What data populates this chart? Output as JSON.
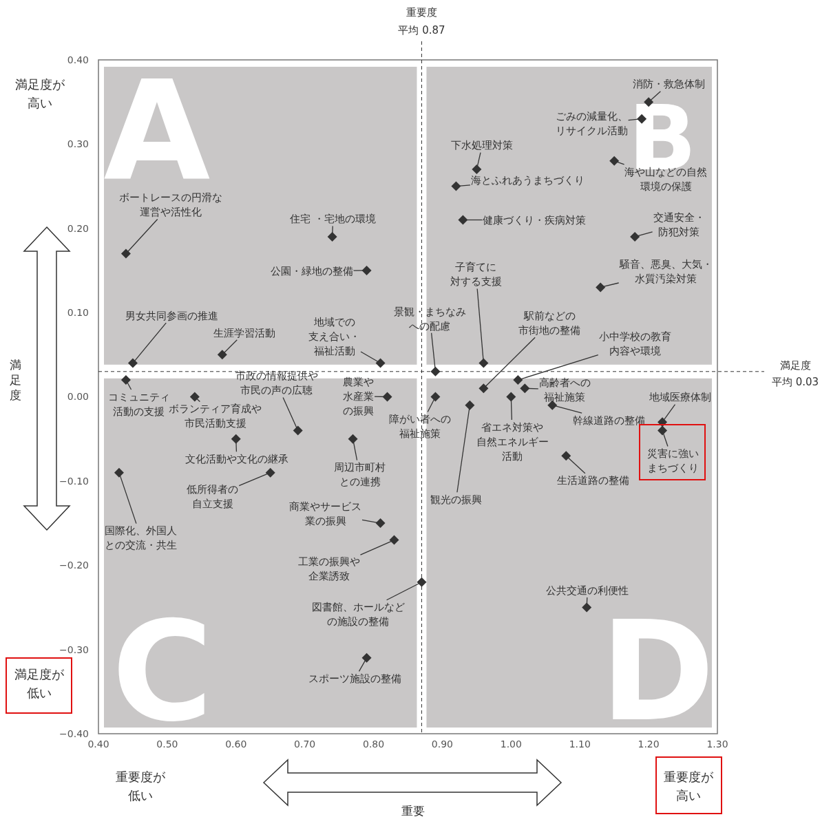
{
  "chart_data": {
    "type": "scatter",
    "xlabel": "重要",
    "ylabel": "満足度",
    "xlim": [
      0.4,
      1.3
    ],
    "ylim": [
      -0.4,
      0.4
    ],
    "xticks": [
      {
        "value": 0.4,
        "label": "0.40"
      },
      {
        "value": 0.5,
        "label": "0.50"
      },
      {
        "value": 0.6,
        "label": "0.60"
      },
      {
        "value": 0.7,
        "label": "0.70"
      },
      {
        "value": 0.8,
        "label": "0.80"
      },
      {
        "value": 0.9,
        "label": "0.90"
      },
      {
        "value": 1.0,
        "label": "1.00"
      },
      {
        "value": 1.1,
        "label": "1.10"
      },
      {
        "value": 1.2,
        "label": "1.20"
      },
      {
        "value": 1.3,
        "label": "1.30"
      }
    ],
    "yticks": [
      {
        "value": 0.4,
        "label": "0.40"
      },
      {
        "value": 0.3,
        "label": "0.30"
      },
      {
        "value": 0.2,
        "label": "0.20"
      },
      {
        "value": 0.1,
        "label": "0.10"
      },
      {
        "value": 0,
        "label": "0.00"
      },
      {
        "value": -0.1,
        "label": "−0.10"
      },
      {
        "value": -0.2,
        "label": "−0.20"
      },
      {
        "value": -0.3,
        "label": "−0.30"
      },
      {
        "value": -0.4,
        "label": "−0.40"
      }
    ],
    "marker": "diamond",
    "series": [
      {
        "color": "#333333",
        "x": [
          1.2,
          1.19,
          1.15,
          0.95,
          0.92,
          0.93,
          1.18,
          1.13,
          0.74,
          0.79,
          0.44,
          0.45,
          0.58,
          0.81,
          0.89,
          0.96,
          0.96,
          1.01,
          1.02,
          0.44,
          0.54,
          0.69,
          0.82,
          0.89,
          0.94,
          1.0,
          1.06,
          1.22,
          1.22,
          0.6,
          0.77,
          1.08,
          0.43,
          0.65,
          0.81,
          0.83,
          0.87,
          1.11,
          0.79
        ],
        "values": [
          0.35,
          0.33,
          0.28,
          0.27,
          0.25,
          0.21,
          0.19,
          0.13,
          0.19,
          0.15,
          0.17,
          0.04,
          0.05,
          0.04,
          0.03,
          0.04,
          0.01,
          0.02,
          0.01,
          0.02,
          0.0,
          -0.04,
          0.0,
          0.0,
          -0.01,
          0.0,
          -0.01,
          -0.03,
          -0.04,
          -0.05,
          -0.05,
          -0.07,
          -0.09,
          -0.09,
          -0.15,
          -0.17,
          -0.22,
          -0.25,
          -0.31
        ]
      }
    ],
    "ref_lines": [
      {
        "axis": "x",
        "value": 0.87,
        "label": "重要度平均 0.87",
        "line_style": "dashed"
      },
      {
        "axis": "y",
        "value": 0.03,
        "label": "満足度平均 0.03",
        "line_style": "dashed"
      }
    ],
    "annotations": [
      {
        "text": "消防・救急体制",
        "x": 1.2,
        "y": 0.35
      },
      {
        "text": "ごみの減量化、リサイクル活動",
        "x": 1.19,
        "y": 0.33
      },
      {
        "text": "海や山などの自然環境の保護",
        "x": 1.15,
        "y": 0.28
      },
      {
        "text": "下水処理対策",
        "x": 0.95,
        "y": 0.27
      },
      {
        "text": "海とふれあうまちづくり",
        "x": 0.92,
        "y": 0.25
      },
      {
        "text": "健康づくり・疾病対策",
        "x": 0.93,
        "y": 0.21
      },
      {
        "text": "交通安全・防犯対策",
        "x": 1.18,
        "y": 0.19
      },
      {
        "text": "騒音、悪臭、大気・水質汚染対策",
        "x": 1.13,
        "y": 0.13
      },
      {
        "text": "住宅 ・宅地の環境",
        "x": 0.74,
        "y": 0.19
      },
      {
        "text": "公園・緑地の整備",
        "x": 0.79,
        "y": 0.15
      },
      {
        "text": "ボートレースの円滑な運営や活性化",
        "x": 0.44,
        "y": 0.17
      },
      {
        "text": "男女共同参画の推進",
        "x": 0.45,
        "y": 0.04
      },
      {
        "text": "生涯学習活動",
        "x": 0.58,
        "y": 0.05
      },
      {
        "text": "地域での支え合い・福祉活動",
        "x": 0.81,
        "y": 0.04
      },
      {
        "text": "景観・まちなみへの配慮",
        "x": 0.89,
        "y": 0.03
      },
      {
        "text": "子育てに対する支援",
        "x": 0.96,
        "y": 0.04
      },
      {
        "text": "駅前などの市街地の整備",
        "x": 0.96,
        "y": 0.01
      },
      {
        "text": "小中学校の教育内容や環境",
        "x": 1.01,
        "y": 0.02
      },
      {
        "text": "高齢者への福祉施策",
        "x": 1.02,
        "y": 0.01
      },
      {
        "text": "コミュニティ活動の支援",
        "x": 0.44,
        "y": 0.02
      },
      {
        "text": "ボランティア育成や市民活動支援",
        "x": 0.54,
        "y": 0.0
      },
      {
        "text": "市政の情報提供や市民の声の広聴",
        "x": 0.69,
        "y": -0.04
      },
      {
        "text": "農業や水産業の振興",
        "x": 0.82,
        "y": 0.0
      },
      {
        "text": "障がい者への福祉施策",
        "x": 0.89,
        "y": 0.0
      },
      {
        "text": "観光の振興",
        "x": 0.94,
        "y": -0.01
      },
      {
        "text": "省エネ対策や自然エネルギー活動",
        "x": 1.0,
        "y": 0.0
      },
      {
        "text": "幹線道路の整備",
        "x": 1.06,
        "y": -0.01
      },
      {
        "text": "地域医療体制",
        "x": 1.22,
        "y": -0.03
      },
      {
        "text": "災害に強いまちづくり",
        "x": 1.22,
        "y": -0.04
      },
      {
        "text": "文化活動や文化の継承",
        "x": 0.6,
        "y": -0.05
      },
      {
        "text": "周辺市町村との連携",
        "x": 0.77,
        "y": -0.05
      },
      {
        "text": "生活道路の整備",
        "x": 1.08,
        "y": -0.07
      },
      {
        "text": "国際化、外国人との交流・共生",
        "x": 0.43,
        "y": -0.09
      },
      {
        "text": "低所得者の自立支援",
        "x": 0.65,
        "y": -0.09
      },
      {
        "text": "商業やサービス業の振興",
        "x": 0.81,
        "y": -0.15
      },
      {
        "text": "工業の振興や企業誘致",
        "x": 0.83,
        "y": -0.17
      },
      {
        "text": "図書館、ホールなどの施設の整備",
        "x": 0.87,
        "y": -0.22
      },
      {
        "text": "公共交通の利便性",
        "x": 1.11,
        "y": -0.25
      },
      {
        "text": "スポーツ施設の整備",
        "x": 0.79,
        "y": -0.31
      },
      "A",
      "B",
      "C",
      "D",
      "満足度が高い",
      "満足度が低い",
      "重要度が低い",
      "重要度が高い"
    ]
  }
}
